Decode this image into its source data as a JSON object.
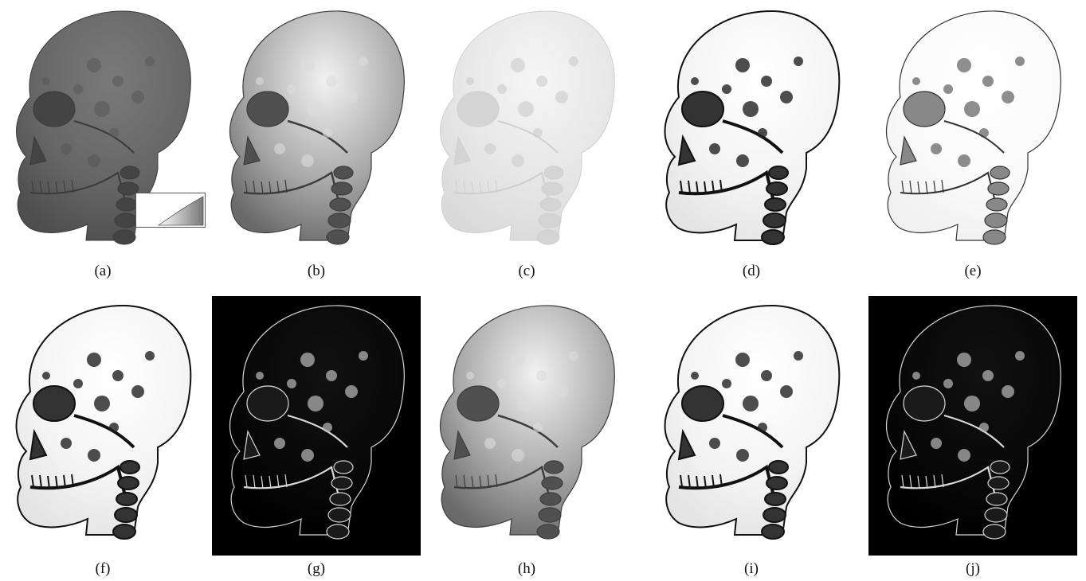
{
  "figure": {
    "panels": [
      {
        "id": "a",
        "label": "(a)",
        "style": "flat-dark",
        "background": "#ffffff"
      },
      {
        "id": "b",
        "label": "(b)",
        "style": "shaded-metal",
        "background": "#ffffff"
      },
      {
        "id": "c",
        "label": "(c)",
        "style": "faint",
        "background": "#ffffff"
      },
      {
        "id": "d",
        "label": "(d)",
        "style": "edges-dark",
        "background": "#ffffff"
      },
      {
        "id": "e",
        "label": "(e)",
        "style": "edges-light",
        "background": "#ffffff"
      },
      {
        "id": "f",
        "label": "(f)",
        "style": "edges-dark",
        "background": "#ffffff"
      },
      {
        "id": "g",
        "label": "(g)",
        "style": "edges-inverse",
        "background": "#000000"
      },
      {
        "id": "h",
        "label": "(h)",
        "style": "shaded-metal",
        "background": "#ffffff"
      },
      {
        "id": "i",
        "label": "(i)",
        "style": "edges-dark",
        "background": "#ffffff"
      },
      {
        "id": "j",
        "label": "(j)",
        "style": "edges-inverse",
        "background": "#000000"
      }
    ],
    "inset_chart": {
      "panel": "a",
      "type": "area",
      "tick_labels_note": "illegible"
    }
  }
}
